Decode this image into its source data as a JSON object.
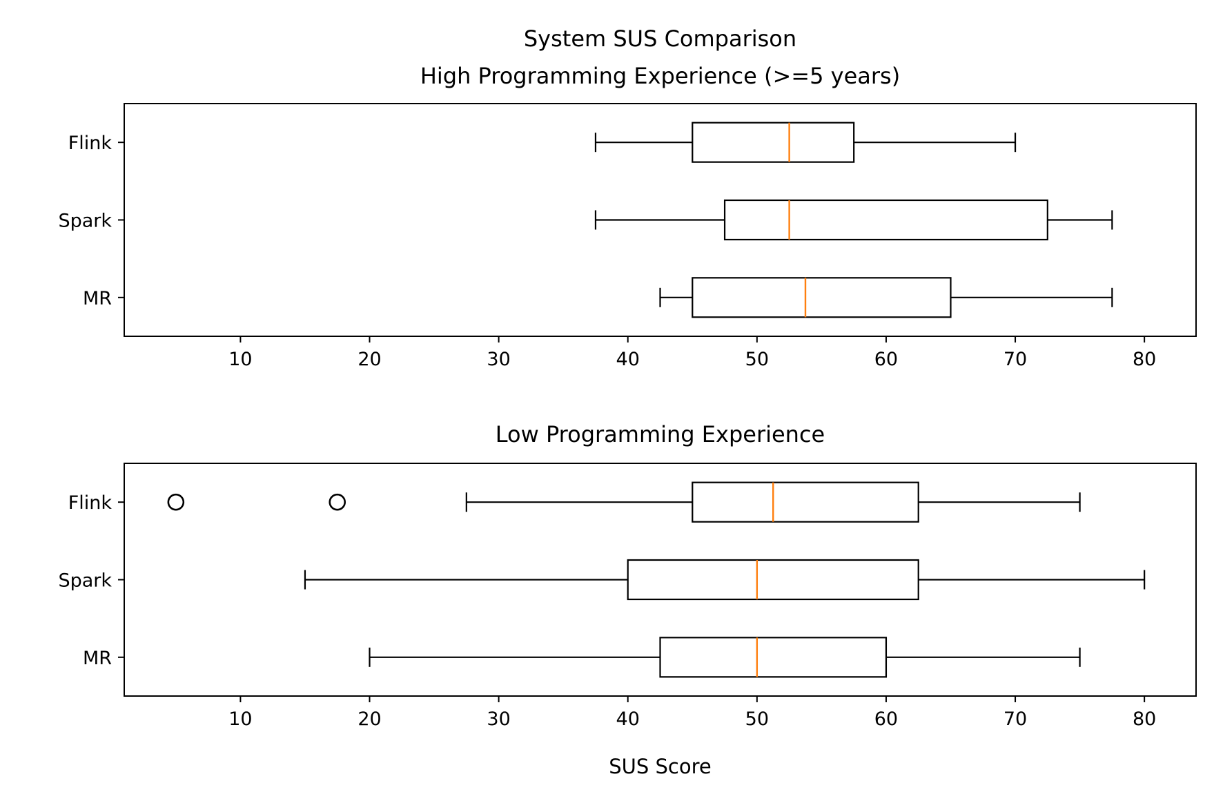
{
  "chart_data": [
    {
      "type": "boxplot",
      "orientation": "horizontal",
      "title": "System SUS Comparison\nHigh Programming Experience (>=5 years)",
      "xlabel": "",
      "ylabel": "",
      "xlim": [
        1,
        84
      ],
      "xticks": [
        10,
        20,
        30,
        40,
        50,
        60,
        70,
        80
      ],
      "categories": [
        "Flink",
        "Spark",
        "MR"
      ],
      "boxes": [
        {
          "name": "Flink",
          "whislo": 37.5,
          "q1": 45,
          "med": 52.5,
          "q3": 57.5,
          "whishi": 70,
          "fliers": []
        },
        {
          "name": "Spark",
          "whislo": 37.5,
          "q1": 47.5,
          "med": 52.5,
          "q3": 72.5,
          "whishi": 77.5,
          "fliers": []
        },
        {
          "name": "MR",
          "whislo": 42.5,
          "q1": 45,
          "med": 53.75,
          "q3": 65,
          "whishi": 77.5,
          "fliers": []
        }
      ],
      "box_color": "#000000",
      "median_color": "#ff7f0e",
      "grid": false
    },
    {
      "type": "boxplot",
      "orientation": "horizontal",
      "title": "Low Programming Experience",
      "xlabel": "SUS Score",
      "ylabel": "",
      "xlim": [
        1,
        84
      ],
      "xticks": [
        10,
        20,
        30,
        40,
        50,
        60,
        70,
        80
      ],
      "categories": [
        "Flink",
        "Spark",
        "MR"
      ],
      "boxes": [
        {
          "name": "Flink",
          "whislo": 27.5,
          "q1": 45,
          "med": 51.25,
          "q3": 62.5,
          "whishi": 75,
          "fliers": [
            5,
            17.5
          ]
        },
        {
          "name": "Spark",
          "whislo": 15,
          "q1": 40,
          "med": 50,
          "q3": 62.5,
          "whishi": 80,
          "fliers": []
        },
        {
          "name": "MR",
          "whislo": 20,
          "q1": 42.5,
          "med": 50,
          "q3": 60,
          "whishi": 75,
          "fliers": []
        }
      ],
      "box_color": "#000000",
      "median_color": "#ff7f0e",
      "grid": false
    }
  ]
}
